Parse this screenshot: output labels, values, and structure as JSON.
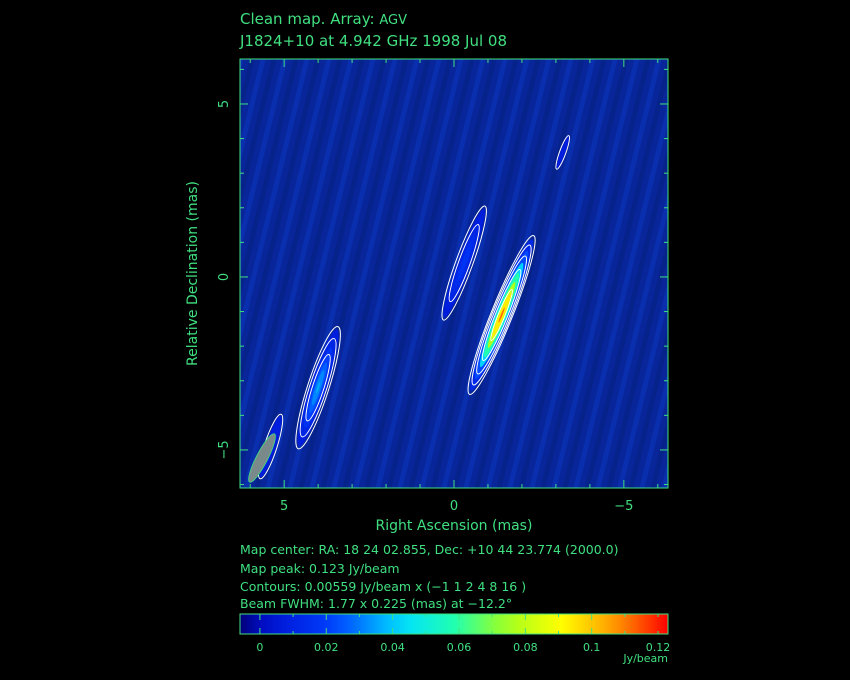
{
  "header": {
    "title_prefix": "Clean map.  Array: ",
    "array": "AGV",
    "title_line2": "J1824+10 at 4.942 GHz 1998 Jul 08"
  },
  "info": {
    "map_center": "Map center:  RA: 18 24 02.855,  Dec: +10 44 23.774 (2000.0)",
    "map_peak": "Map peak: 0.123 Jy/beam",
    "contours": "Contours: 0.00559 Jy/beam x (−1 1 2 4 8 16 )",
    "beam": "Beam FWHM: 1.77 x 0.225 (mas) at −12.2°"
  },
  "colors": {
    "frame": "#40e080",
    "background": "#000000",
    "map_floor": "#08269a",
    "contour": "#ffffff"
  },
  "chart_data": {
    "type": "heatmap",
    "title": "Clean map.  Array: AGV",
    "subtitle": "J1824+10 at 4.942 GHz 1998 Jul 08",
    "xlabel": "Right Ascension  (mas)",
    "ylabel": "Relative Declination  (mas)",
    "xlim": [
      6.3,
      -6.3
    ],
    "ylim": [
      -6.1,
      6.3
    ],
    "x_ticks": [
      5,
      0,
      -5
    ],
    "y_ticks": [
      5,
      0,
      -5
    ],
    "x_tick_labels": [
      "5",
      "0",
      "−5"
    ],
    "y_tick_labels": [
      "5",
      "0",
      "−5"
    ],
    "colorbar": {
      "range": [
        -0.006,
        0.123
      ],
      "ticks": [
        0,
        0.02,
        0.04,
        0.06,
        0.08,
        0.1,
        0.12
      ],
      "tick_labels": [
        "0",
        "0.02",
        "0.04",
        "0.06",
        "0.08",
        "0.1",
        "0.12"
      ],
      "unit": "Jy/beam"
    },
    "beam": {
      "major_mas": 1.77,
      "minor_mas": 0.225,
      "pa_deg": -12.2
    },
    "components": [
      {
        "x": -1.4,
        "y": -1.1,
        "peak": 0.123,
        "major": 4.8,
        "minor": 0.5,
        "pa": 22
      },
      {
        "x": -0.3,
        "y": 0.4,
        "peak": 0.02,
        "major": 3.4,
        "minor": 0.4,
        "pa": 20
      },
      {
        "x": 4.0,
        "y": -3.2,
        "peak": 0.04,
        "major": 3.6,
        "minor": 0.5,
        "pa": 18
      },
      {
        "x": 5.4,
        "y": -4.9,
        "peak": 0.012,
        "major": 1.9,
        "minor": 0.3,
        "pa": 18
      },
      {
        "x": -3.2,
        "y": 3.6,
        "peak": 0.009,
        "major": 1.0,
        "minor": 0.15,
        "pa": 20
      }
    ]
  }
}
